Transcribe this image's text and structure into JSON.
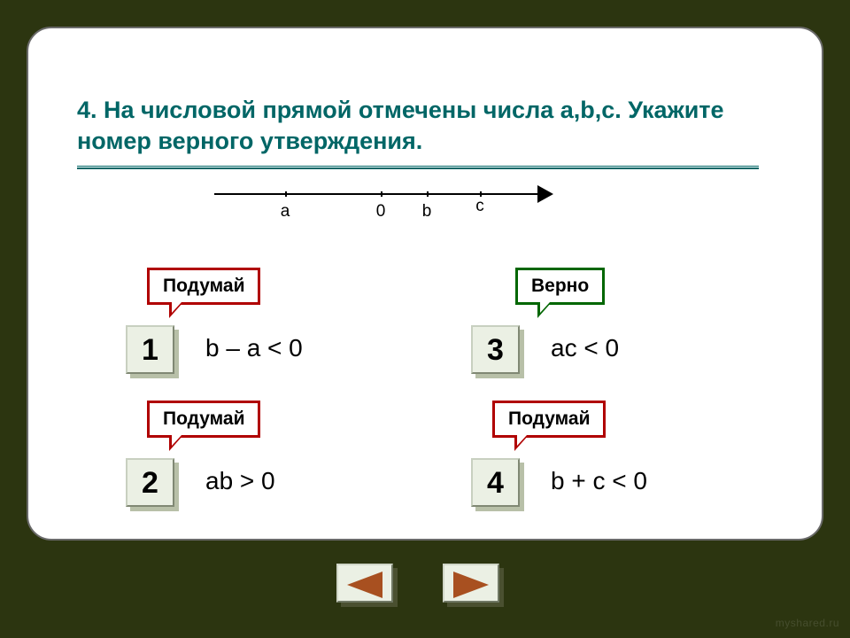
{
  "question": "4. На числовой прямой  отмечены числа a,b,c. Укажите номер верного утверждения.",
  "numberline": {
    "labels": {
      "a": "a",
      "zero": "0",
      "b": "b",
      "c": "c"
    }
  },
  "callouts": {
    "think": "Подумай",
    "correct": "Верно"
  },
  "options": [
    {
      "n": "1",
      "expr": "b – a < 0",
      "feedback": "think"
    },
    {
      "n": "2",
      "expr": "ab > 0",
      "feedback": "think"
    },
    {
      "n": "3",
      "expr": "ac < 0",
      "feedback": "correct"
    },
    {
      "n": "4",
      "expr": "b + c < 0",
      "feedback": "think"
    }
  ],
  "colors": {
    "page_bg": "#2c3510",
    "card_bg": "#ffffff",
    "heading": "#006666",
    "callout_wrong_border": "#b00000",
    "callout_right_border": "#006600",
    "button_face": "#ebf0e4",
    "nav_arrow": "#a85020"
  },
  "watermark": "myshared.ru"
}
